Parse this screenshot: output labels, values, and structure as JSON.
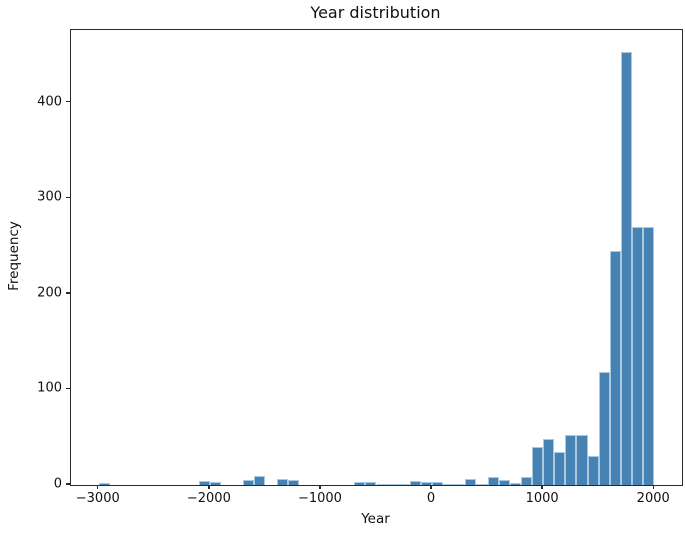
{
  "chart_data": {
    "type": "bar",
    "subtype": "histogram",
    "title": "Year distribution",
    "xlabel": "Year",
    "ylabel": "Frequency",
    "bin_start": -3000,
    "bin_width": 100,
    "counts": [
      2,
      0,
      0,
      0,
      0,
      0,
      0,
      0,
      0,
      4,
      3,
      0,
      0,
      5,
      9,
      0,
      6,
      5,
      0,
      0,
      0,
      0,
      0,
      3,
      3,
      1,
      1,
      1,
      4,
      3,
      3,
      1,
      1,
      6,
      1,
      8,
      5,
      2,
      8,
      40,
      48,
      35,
      52,
      52,
      30,
      118,
      245,
      453,
      270,
      270
    ],
    "xlim": [
      -3250,
      2250
    ],
    "ylim": [
      0,
      476
    ],
    "xticks": [
      -3000,
      -2000,
      -1000,
      0,
      1000,
      2000
    ],
    "xtick_labels": [
      "−3000",
      "−2000",
      "−1000",
      "0",
      "1000",
      "2000"
    ],
    "yticks": [
      0,
      100,
      200,
      300,
      400
    ],
    "ytick_labels": [
      "0",
      "100",
      "200",
      "300",
      "400"
    ],
    "grid": false,
    "legend": null,
    "bar_color": "#4682b4",
    "bar_edge_color": "#a9c9e0",
    "axis_color": "#2a2a2a"
  }
}
